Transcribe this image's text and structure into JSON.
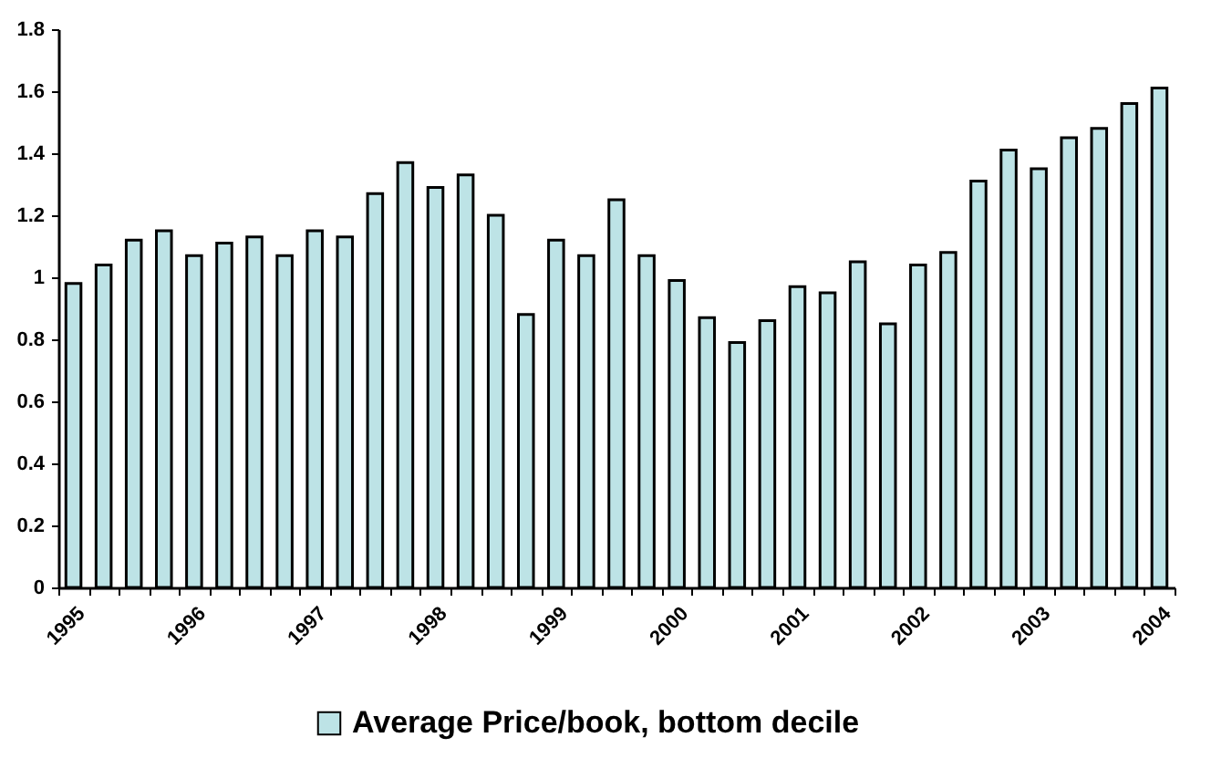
{
  "chart_data": {
    "type": "bar",
    "categories": [
      "1995",
      null,
      null,
      null,
      "1996",
      null,
      null,
      null,
      "1997",
      null,
      null,
      null,
      "1998",
      null,
      null,
      null,
      "1999",
      null,
      null,
      null,
      "2000",
      null,
      null,
      null,
      "2001",
      null,
      null,
      null,
      "2002",
      null,
      null,
      null,
      "2003",
      null,
      null,
      null,
      "2004"
    ],
    "series": [
      {
        "name": "Average Price/book, bottom decile",
        "color": "#bde3e6",
        "values": [
          0.98,
          1.04,
          1.12,
          1.15,
          1.07,
          1.11,
          1.13,
          1.07,
          1.15,
          1.13,
          1.27,
          1.37,
          1.29,
          1.33,
          1.2,
          0.88,
          1.12,
          1.07,
          1.25,
          1.07,
          0.99,
          0.87,
          0.79,
          0.86,
          0.97,
          0.95,
          1.05,
          0.85,
          1.04,
          1.08,
          1.31,
          1.41,
          1.35,
          1.45,
          1.48,
          1.56,
          1.61
        ]
      }
    ],
    "ylim": [
      0,
      1.8
    ],
    "yticks": [
      0,
      0.2,
      0.4,
      0.6,
      0.8,
      1,
      1.2,
      1.4,
      1.6,
      1.8
    ],
    "grid": false,
    "legend": "bottom"
  }
}
